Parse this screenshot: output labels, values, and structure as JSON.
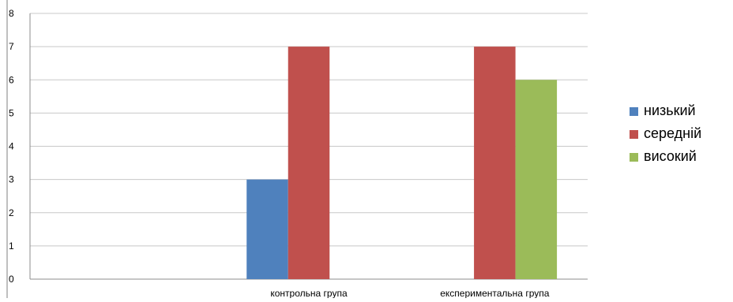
{
  "chart_data": {
    "type": "bar",
    "categories": [
      "",
      "контрольна група",
      "експериментальна група"
    ],
    "series": [
      {
        "name": "низький",
        "color": "#4F81BD",
        "values": [
          null,
          3,
          null
        ]
      },
      {
        "name": "середній",
        "color": "#C0504D",
        "values": [
          null,
          7,
          7
        ]
      },
      {
        "name": "високий",
        "color": "#9BBB59",
        "values": [
          null,
          null,
          6
        ]
      }
    ],
    "title": "",
    "xlabel": "",
    "ylabel": "",
    "ylim": [
      0,
      8
    ],
    "yticks": [
      0,
      1,
      2,
      3,
      4,
      5,
      6,
      7,
      8
    ],
    "grid": true,
    "legend_position": "right"
  }
}
